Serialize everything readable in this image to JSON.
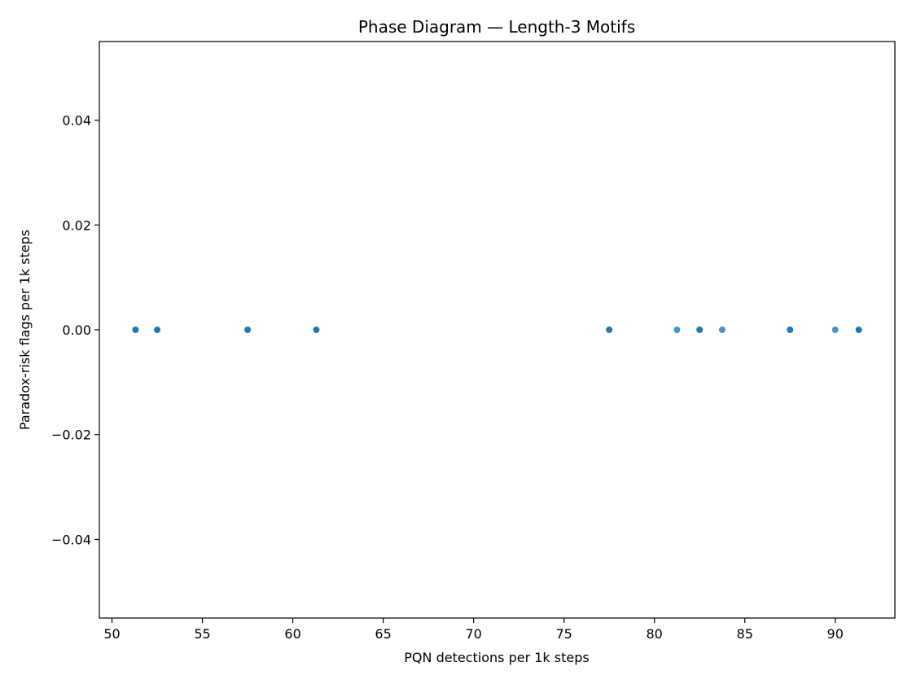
{
  "chart_data": {
    "type": "scatter",
    "title": "Phase Diagram — Length-3 Motifs",
    "xlabel": "PQN detections per 1k steps",
    "ylabel": "Paradox-risk flags per 1k steps",
    "xlim": [
      49.3,
      93.3
    ],
    "ylim": [
      -0.055,
      0.055
    ],
    "x_ticks": [
      50,
      55,
      60,
      65,
      70,
      75,
      80,
      85,
      90
    ],
    "x_tick_labels": [
      "50",
      "55",
      "60",
      "65",
      "70",
      "75",
      "80",
      "85",
      "90"
    ],
    "y_ticks": [
      0.04,
      0.02,
      0.0,
      -0.02,
      -0.04
    ],
    "y_tick_labels": [
      "0.04",
      "0.02",
      "0.00",
      "−0.02",
      "−0.04"
    ],
    "grid": false,
    "marker_color": "#1f77b4",
    "points": [
      {
        "x": 51.3,
        "y": 0,
        "n": 3
      },
      {
        "x": 52.5,
        "y": 0,
        "n": 3
      },
      {
        "x": 57.5,
        "y": 0,
        "n": 4
      },
      {
        "x": 61.3,
        "y": 0,
        "n": 5
      },
      {
        "x": 77.5,
        "y": 0,
        "n": 3
      },
      {
        "x": 81.25,
        "y": 0,
        "n": 1
      },
      {
        "x": 82.5,
        "y": 0,
        "n": 3
      },
      {
        "x": 83.75,
        "y": 0,
        "n": 1
      },
      {
        "x": 87.5,
        "y": 0,
        "n": 3
      },
      {
        "x": 90.0,
        "y": 0,
        "n": 1
      },
      {
        "x": 91.3,
        "y": 0,
        "n": 5
      }
    ]
  }
}
